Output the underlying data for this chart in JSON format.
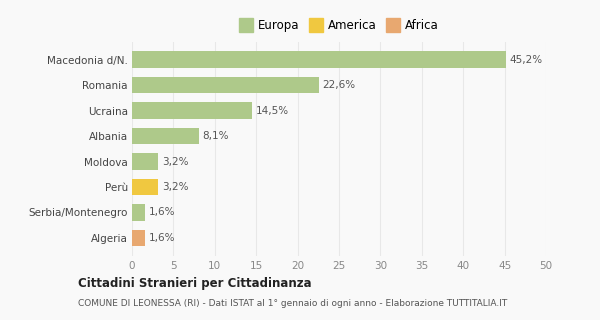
{
  "categories": [
    "Macedonia d/N.",
    "Romania",
    "Ucraina",
    "Albania",
    "Moldova",
    "Perù",
    "Serbia/Montenegro",
    "Algeria"
  ],
  "values": [
    45.2,
    22.6,
    14.5,
    8.1,
    3.2,
    3.2,
    1.6,
    1.6
  ],
  "labels": [
    "45,2%",
    "22,6%",
    "14,5%",
    "8,1%",
    "3,2%",
    "3,2%",
    "1,6%",
    "1,6%"
  ],
  "colors": [
    "#aec98a",
    "#aec98a",
    "#aec98a",
    "#aec98a",
    "#aec98a",
    "#f0c840",
    "#aec98a",
    "#e8a870"
  ],
  "legend_items": [
    {
      "label": "Europa",
      "color": "#aec98a"
    },
    {
      "label": "America",
      "color": "#f0c840"
    },
    {
      "label": "Africa",
      "color": "#e8a870"
    }
  ],
  "xlim": [
    0,
    50
  ],
  "xticks": [
    0,
    5,
    10,
    15,
    20,
    25,
    30,
    35,
    40,
    45,
    50
  ],
  "title_bold": "Cittadini Stranieri per Cittadinanza",
  "subtitle": "COMUNE DI LEONESSA (RI) - Dati ISTAT al 1° gennaio di ogni anno - Elaborazione TUTTITALIA.IT",
  "background_color": "#f9f9f9",
  "grid_color": "#e8e8e8",
  "bar_height": 0.65,
  "label_fontsize": 7.5,
  "ytick_fontsize": 7.5,
  "xtick_fontsize": 7.5
}
